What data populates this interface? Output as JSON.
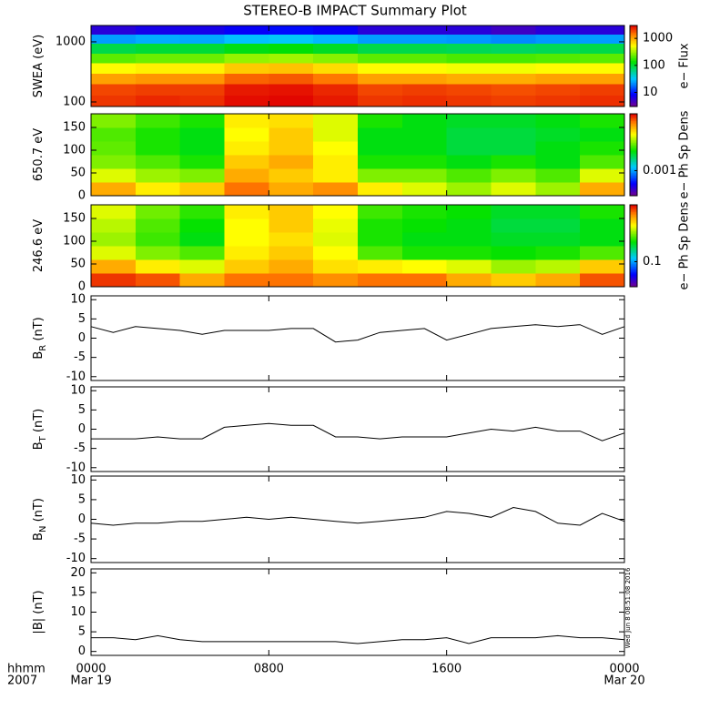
{
  "title": "STEREO-B IMPACT Summary Plot",
  "timestamp": "Wed Jun  8 08:51:08 2016",
  "x_axis": {
    "xlim": [
      0,
      24
    ],
    "xticks": [
      {
        "value": 0,
        "label": "0000"
      },
      {
        "value": 8,
        "label": "0800"
      },
      {
        "value": 16,
        "label": "1600"
      },
      {
        "value": 24,
        "label": "0000"
      }
    ],
    "date_labels": [
      {
        "value": 0,
        "label": "Mar 19"
      },
      {
        "value": 24,
        "label": "Mar 20"
      }
    ],
    "label_top": "hhmm",
    "label_bottom": "2007"
  },
  "chart_data": [
    {
      "type": "heatmap",
      "ylabel": "SWEA (eV)",
      "ylog": true,
      "ylim": [
        84,
        1870
      ],
      "yticks": [
        100,
        1000
      ],
      "colormap": "rainbow",
      "clabel": "e− Flux",
      "clim": [
        3,
        3000
      ],
      "cticks": [
        10,
        100,
        1000
      ],
      "x_edges": [
        0,
        2,
        4,
        6,
        8,
        10,
        12,
        14,
        16,
        18,
        20,
        22,
        24
      ],
      "y_edges": [
        84,
        130,
        200,
        300,
        450,
        650,
        950,
        1350,
        1870
      ],
      "z": [
        [
          2200,
          2400,
          2300,
          2800,
          2900,
          2600,
          2200,
          2300,
          2200,
          2100,
          2200,
          2300
        ],
        [
          2000,
          2100,
          2100,
          2600,
          2700,
          2400,
          2000,
          2100,
          2000,
          1900,
          2000,
          2100
        ],
        [
          1100,
          1200,
          1200,
          1700,
          1800,
          1500,
          1100,
          1100,
          1000,
          1000,
          1100,
          1100
        ],
        [
          550,
          600,
          600,
          800,
          850,
          700,
          550,
          550,
          500,
          500,
          550,
          550
        ],
        [
          220,
          240,
          240,
          300,
          320,
          280,
          220,
          220,
          200,
          200,
          210,
          220
        ],
        [
          90,
          100,
          100,
          120,
          130,
          110,
          90,
          90,
          85,
          80,
          85,
          90
        ],
        [
          25,
          28,
          27,
          32,
          35,
          30,
          25,
          25,
          24,
          22,
          24,
          25
        ],
        [
          6,
          7,
          7,
          8,
          9,
          8,
          6,
          6,
          6,
          5,
          6,
          6
        ]
      ]
    },
    {
      "type": "heatmap",
      "ylabel": "650.7 eV",
      "ylog": false,
      "ylim": [
        0,
        180
      ],
      "yticks": [
        0,
        50,
        100,
        150
      ],
      "colormap": "rainbow",
      "clabel": "e− Ph Sp Dens",
      "clim": [
        0.0004,
        0.008
      ],
      "cticks": [
        0.001
      ],
      "x_edges": [
        0,
        2,
        4,
        6,
        8,
        10,
        12,
        14,
        16,
        18,
        20,
        22,
        24
      ],
      "y_edges": [
        0,
        30,
        60,
        90,
        120,
        150,
        180
      ],
      "z": [
        [
          0.005,
          0.004,
          0.0045,
          0.006,
          0.005,
          0.0055,
          0.004,
          0.0035,
          0.003,
          0.0035,
          0.003,
          0.005
        ],
        [
          0.0035,
          0.003,
          0.0028,
          0.005,
          0.0045,
          0.004,
          0.0028,
          0.0028,
          0.0025,
          0.0028,
          0.0025,
          0.0035
        ],
        [
          0.0028,
          0.0025,
          0.0022,
          0.0045,
          0.005,
          0.004,
          0.0022,
          0.0022,
          0.002,
          0.0022,
          0.002,
          0.0025
        ],
        [
          0.0026,
          0.0022,
          0.002,
          0.004,
          0.0045,
          0.0038,
          0.002,
          0.002,
          0.0018,
          0.0018,
          0.002,
          0.0022
        ],
        [
          0.0025,
          0.0022,
          0.002,
          0.0038,
          0.0045,
          0.0035,
          0.002,
          0.002,
          0.0018,
          0.0018,
          0.0019,
          0.002
        ],
        [
          0.0028,
          0.0024,
          0.0022,
          0.004,
          0.0042,
          0.0035,
          0.0022,
          0.002,
          0.0019,
          0.0019,
          0.002,
          0.0022
        ]
      ]
    },
    {
      "type": "heatmap",
      "ylabel": "246.6 eV",
      "ylog": false,
      "ylim": [
        0,
        180
      ],
      "yticks": [
        0,
        50,
        100,
        150
      ],
      "colormap": "rainbow",
      "clabel": "e− Ph Sp Dens",
      "clim": [
        0.04,
        0.8
      ],
      "cticks": [
        0.1
      ],
      "x_edges": [
        0,
        2,
        4,
        6,
        8,
        10,
        12,
        14,
        16,
        18,
        20,
        22,
        24
      ],
      "y_edges": [
        0,
        30,
        60,
        90,
        120,
        150,
        180
      ],
      "z": [
        [
          0.7,
          0.65,
          0.5,
          0.6,
          0.6,
          0.55,
          0.6,
          0.6,
          0.5,
          0.45,
          0.5,
          0.65
        ],
        [
          0.5,
          0.4,
          0.35,
          0.45,
          0.5,
          0.42,
          0.4,
          0.38,
          0.35,
          0.3,
          0.32,
          0.45
        ],
        [
          0.35,
          0.28,
          0.25,
          0.4,
          0.45,
          0.38,
          0.25,
          0.22,
          0.22,
          0.21,
          0.22,
          0.25
        ],
        [
          0.3,
          0.24,
          0.2,
          0.38,
          0.42,
          0.35,
          0.22,
          0.2,
          0.2,
          0.19,
          0.19,
          0.2
        ],
        [
          0.32,
          0.25,
          0.21,
          0.38,
          0.45,
          0.36,
          0.22,
          0.21,
          0.2,
          0.18,
          0.18,
          0.2
        ],
        [
          0.35,
          0.27,
          0.23,
          0.4,
          0.45,
          0.38,
          0.24,
          0.22,
          0.21,
          0.19,
          0.19,
          0.22
        ]
      ]
    },
    {
      "type": "line",
      "ylabel": "B",
      "ylabel_sub": "R",
      "ylabel_unit": "(nT)",
      "ylim": [
        -11,
        11
      ],
      "yticks": [
        -10,
        -5,
        0,
        5,
        10
      ],
      "color": "#000000",
      "x": [
        0,
        1,
        2,
        3,
        4,
        5,
        6,
        7,
        8,
        9,
        10,
        11,
        12,
        13,
        14,
        15,
        16,
        17,
        18,
        19,
        20,
        21,
        22,
        23,
        24
      ],
      "values": [
        3,
        1.5,
        3,
        2.5,
        2,
        1,
        2,
        2,
        2,
        2.5,
        2.5,
        -1,
        -0.5,
        1.5,
        2,
        2.5,
        -0.5,
        1,
        2.5,
        3,
        3.5,
        3,
        3.5,
        1,
        3
      ]
    },
    {
      "type": "line",
      "ylabel": "B",
      "ylabel_sub": "T",
      "ylabel_unit": "(nT)",
      "ylim": [
        -11,
        11
      ],
      "yticks": [
        -10,
        -5,
        0,
        5,
        10
      ],
      "color": "#000000",
      "x": [
        0,
        1,
        2,
        3,
        4,
        5,
        6,
        7,
        8,
        9,
        10,
        11,
        12,
        13,
        14,
        15,
        16,
        17,
        18,
        19,
        20,
        21,
        22,
        23,
        24
      ],
      "values": [
        -2.5,
        -2.5,
        -2.5,
        -2,
        -2.5,
        -2.5,
        0.5,
        1,
        1.5,
        1,
        1,
        -2,
        -2,
        -2.5,
        -2,
        -2,
        -2,
        -1,
        0,
        -0.5,
        0.5,
        -0.5,
        -0.5,
        -3,
        -1
      ]
    },
    {
      "type": "line",
      "ylabel": "B",
      "ylabel_sub": "N",
      "ylabel_unit": "(nT)",
      "ylim": [
        -11,
        11
      ],
      "yticks": [
        -10,
        -5,
        0,
        5,
        10
      ],
      "color": "#000000",
      "x": [
        0,
        1,
        2,
        3,
        4,
        5,
        6,
        7,
        8,
        9,
        10,
        11,
        12,
        13,
        14,
        15,
        16,
        17,
        18,
        19,
        20,
        21,
        22,
        23,
        24
      ],
      "values": [
        -1,
        -1.5,
        -1,
        -1,
        -0.5,
        -0.5,
        0,
        0.5,
        0,
        0.5,
        0,
        -0.5,
        -1,
        -0.5,
        0,
        0.5,
        2,
        1.5,
        0.5,
        3,
        2,
        -1,
        -1.5,
        1.5,
        -0.5
      ]
    },
    {
      "type": "line",
      "ylabel": "|B| (nT)",
      "ylim": [
        -1,
        21
      ],
      "yticks": [
        0,
        5,
        10,
        15,
        20
      ],
      "color": "#000000",
      "x": [
        0,
        1,
        2,
        3,
        4,
        5,
        6,
        7,
        8,
        9,
        10,
        11,
        12,
        13,
        14,
        15,
        16,
        17,
        18,
        19,
        20,
        21,
        22,
        23,
        24
      ],
      "values": [
        3.5,
        3.5,
        3,
        4,
        3,
        2.5,
        2.5,
        2.5,
        2.5,
        2.5,
        2.5,
        2.5,
        2,
        2.5,
        3,
        3,
        3.5,
        2,
        3.5,
        3.5,
        3.5,
        4,
        3.5,
        3.5,
        3
      ]
    }
  ]
}
